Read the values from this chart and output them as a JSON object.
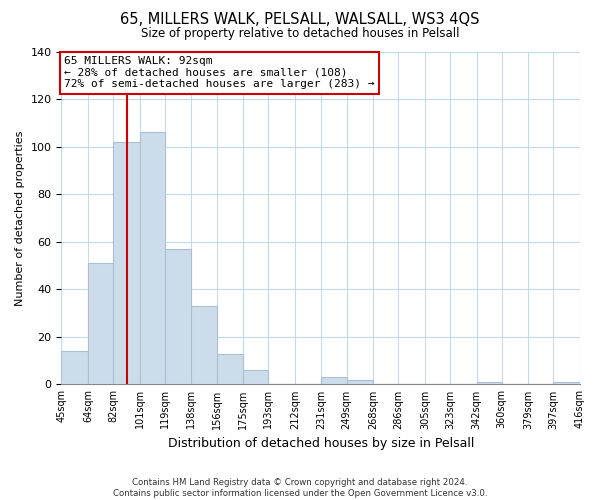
{
  "title": "65, MILLERS WALK, PELSALL, WALSALL, WS3 4QS",
  "subtitle": "Size of property relative to detached houses in Pelsall",
  "xlabel": "Distribution of detached houses by size in Pelsall",
  "ylabel": "Number of detached properties",
  "bins": [
    45,
    64,
    82,
    101,
    119,
    138,
    156,
    175,
    193,
    212,
    231,
    249,
    268,
    286,
    305,
    323,
    342,
    360,
    379,
    397,
    416
  ],
  "bin_labels": [
    "45sqm",
    "64sqm",
    "82sqm",
    "101sqm",
    "119sqm",
    "138sqm",
    "156sqm",
    "175sqm",
    "193sqm",
    "212sqm",
    "231sqm",
    "249sqm",
    "268sqm",
    "286sqm",
    "305sqm",
    "323sqm",
    "342sqm",
    "360sqm",
    "379sqm",
    "397sqm",
    "416sqm"
  ],
  "counts": [
    14,
    51,
    102,
    106,
    57,
    33,
    13,
    6,
    0,
    0,
    3,
    2,
    0,
    0,
    0,
    0,
    1,
    0,
    0,
    1,
    0
  ],
  "bar_color": "#cddceb",
  "bar_edge_color": "#a8bfd4",
  "vline_x": 92,
  "vline_color": "#cc0000",
  "annotation_box_color": "#ffffff",
  "annotation_box_edge": "#cc0000",
  "annotation_line1": "65 MILLERS WALK: 92sqm",
  "annotation_line2": "← 28% of detached houses are smaller (108)",
  "annotation_line3": "72% of semi-detached houses are larger (283) →",
  "ylim": [
    0,
    140
  ],
  "yticks": [
    0,
    20,
    40,
    60,
    80,
    100,
    120,
    140
  ],
  "footer_text": "Contains HM Land Registry data © Crown copyright and database right 2024.\nContains public sector information licensed under the Open Government Licence v3.0.",
  "background_color": "#ffffff",
  "grid_color": "#c5d9ec"
}
